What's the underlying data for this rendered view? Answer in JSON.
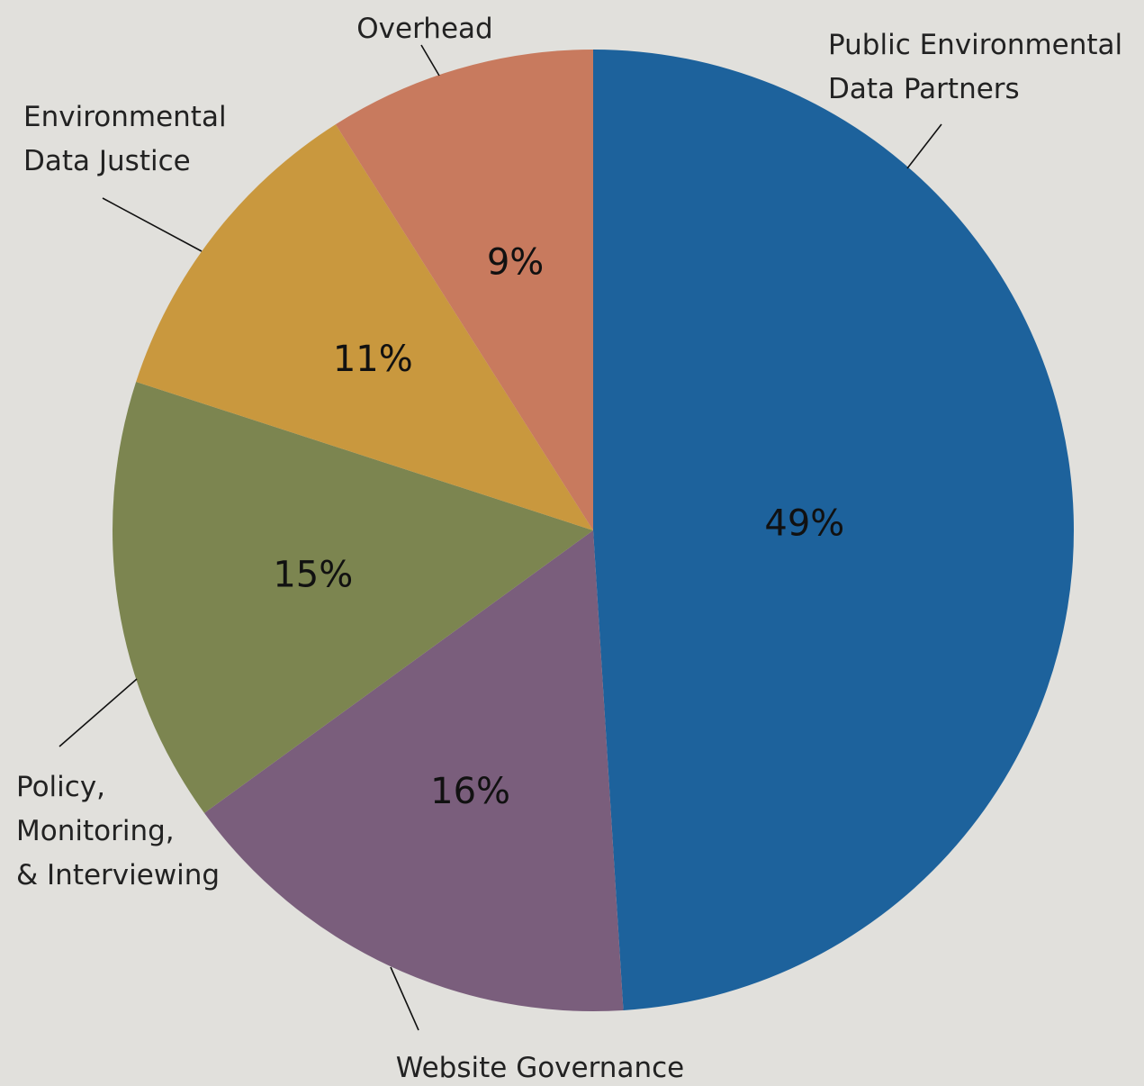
{
  "chart_data": {
    "type": "pie",
    "slices": [
      {
        "label": [
          "Public Environmental",
          "Data Partners"
        ],
        "value": 49,
        "value_label": "49%",
        "color": "#1d629c"
      },
      {
        "label": [
          "Website Governance"
        ],
        "value": 16,
        "value_label": "16%",
        "color": "#7a5e7c"
      },
      {
        "label": [
          "Policy,",
          "Monitoring,",
          "& Interviewing"
        ],
        "value": 15,
        "value_label": "15%",
        "color": "#7c8550"
      },
      {
        "label": [
          "Environmental",
          "Data Justice"
        ],
        "value": 11,
        "value_label": "11%",
        "color": "#c9983e"
      },
      {
        "label": [
          "Overhead"
        ],
        "value": 9,
        "value_label": "9%",
        "color": "#c87a5e"
      }
    ],
    "start": "12 o'clock",
    "direction": "clockwise",
    "background": "#e1e0dc"
  }
}
